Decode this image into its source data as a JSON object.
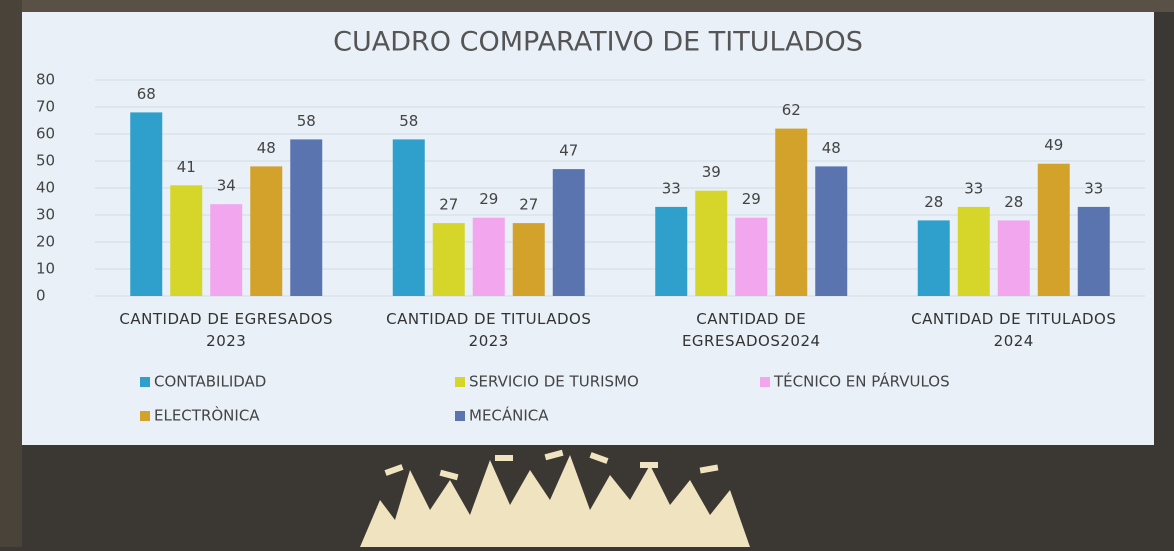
{
  "chart_data": {
    "type": "bar",
    "title": "CUADRO COMPARATIVO DE TITULADOS",
    "categories": [
      "CANTIDAD DE EGRESADOS 2023",
      "CANTIDAD DE TITULADOS 2023",
      "CANTIDAD DE EGRESADOS2024",
      "CANTIDAD DE TITULADOS 2024"
    ],
    "series": [
      {
        "name": "CONTABILIDAD",
        "color": "#2f9fcc",
        "values": [
          68,
          58,
          33,
          28
        ]
      },
      {
        "name": "SERVICIO DE TURISMO",
        "color": "#d6d62a",
        "values": [
          41,
          27,
          39,
          33
        ]
      },
      {
        "name": "TÉCNICO EN PÁRVULOS",
        "color": "#f2a6ee",
        "values": [
          34,
          29,
          29,
          28
        ]
      },
      {
        "name": "ELECTRÒNICA",
        "color": "#d3a22b",
        "values": [
          48,
          27,
          62,
          49
        ]
      },
      {
        "name": "MECÁNICA",
        "color": "#5a74b0",
        "values": [
          58,
          47,
          48,
          33
        ]
      }
    ],
    "ylim": [
      0,
      80
    ],
    "yticks": [
      0,
      10,
      20,
      30,
      40,
      50,
      60,
      70,
      80
    ],
    "grid": true,
    "legend": "bottom"
  }
}
